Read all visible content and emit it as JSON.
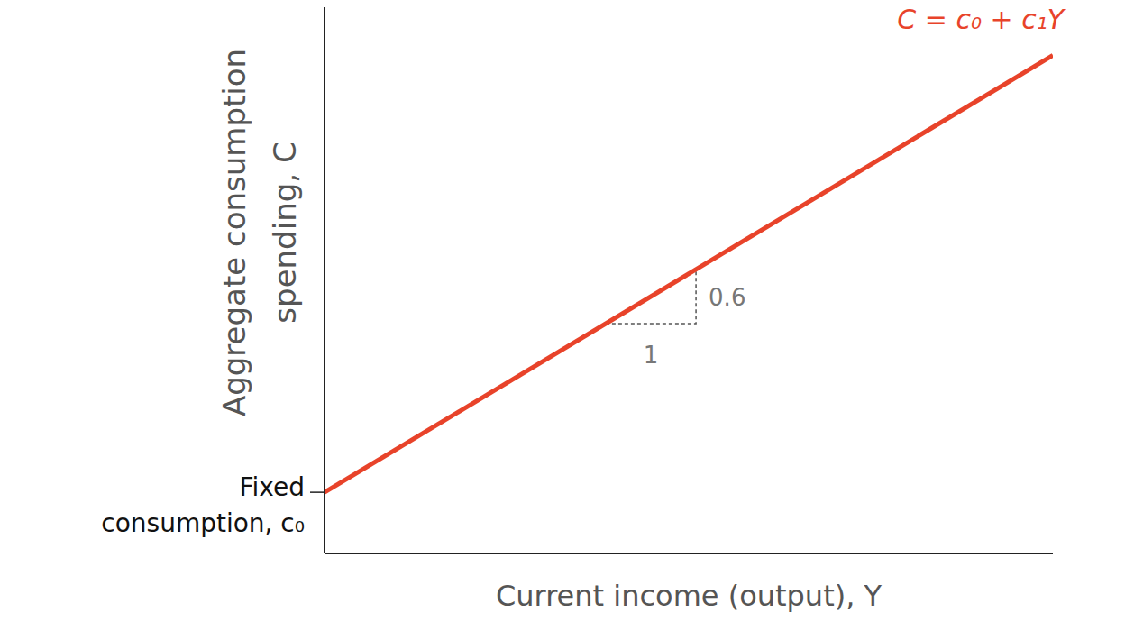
{
  "chart_data": {
    "type": "line",
    "x_label": "Current income (output), Y",
    "y_label": [
      "Aggregate consumption",
      "spending, C"
    ],
    "line_label": "C = c₀ + c₁Y",
    "intercept_label": [
      "Fixed",
      "consumption, c₀"
    ],
    "x": [
      0,
      10
    ],
    "values": [
      0.84,
      6.84
    ],
    "xlim": [
      0,
      10
    ],
    "ylim": [
      0,
      7.5
    ],
    "tick_labels": false,
    "grid": false,
    "color": "#e8432a",
    "slope_triangle": {
      "x": [
        3.86,
        5.1
      ],
      "run": 1,
      "rise": 0.6
    }
  }
}
